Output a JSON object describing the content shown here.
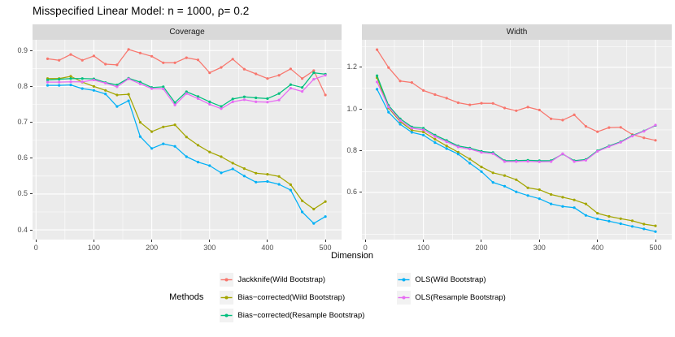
{
  "chart_data": {
    "type": "line",
    "title": "Misspecified Linear Model: n = 1000, ρ= 0.2",
    "xlabel": "Dimension",
    "legend_position": "bottom",
    "grid": true,
    "panel_bg": "#ebebeb",
    "strip_bg": "#d9d9d9",
    "x": [
      20,
      40,
      60,
      80,
      100,
      120,
      140,
      160,
      180,
      200,
      220,
      240,
      260,
      280,
      300,
      320,
      340,
      360,
      380,
      400,
      420,
      440,
      460,
      480,
      500
    ],
    "xlim": [
      -6,
      528
    ],
    "xticks": [
      0,
      100,
      200,
      300,
      400,
      500
    ],
    "xticks_minor": [
      50,
      150,
      250,
      350,
      450
    ],
    "legend": {
      "title": "Methods",
      "columns": [
        [
          {
            "label": "Jackknife(Wild Bootstrap)",
            "color": "#F8766D"
          },
          {
            "label": "Bias−corrected(Wild Bootstrap)",
            "color": "#A3A500"
          },
          {
            "label": "Bias−corrected(Resample Bootstrap)",
            "color": "#00BF7D"
          }
        ],
        [
          {
            "label": "OLS(Wild Bootstrap)",
            "color": "#00B0F6"
          },
          {
            "label": "OLS(Resample Bootstrap)",
            "color": "#E76BF3"
          }
        ]
      ]
    },
    "panels": [
      {
        "label": "Coverage",
        "ylim": [
          0.373,
          0.93
        ],
        "yticks": [
          0.4,
          0.5,
          0.6,
          0.7,
          0.8,
          0.9
        ],
        "yticks_minor": [
          0.45,
          0.55,
          0.65,
          0.75,
          0.85
        ],
        "series": [
          {
            "name": "Jackknife(Wild Bootstrap)",
            "color": "#F8766D",
            "values": [
              0.877,
              0.873,
              0.889,
              0.873,
              0.885,
              0.862,
              0.86,
              0.903,
              0.893,
              0.884,
              0.866,
              0.866,
              0.88,
              0.874,
              0.838,
              0.853,
              0.876,
              0.848,
              0.835,
              0.822,
              0.831,
              0.849,
              0.822,
              0.844,
              0.776
            ]
          },
          {
            "name": "Bias−corrected(Wild Bootstrap)",
            "color": "#A3A500",
            "values": [
              0.822,
              0.822,
              0.828,
              0.812,
              0.8,
              0.789,
              0.776,
              0.778,
              0.7,
              0.674,
              0.687,
              0.693,
              0.659,
              0.636,
              0.617,
              0.604,
              0.586,
              0.571,
              0.558,
              0.555,
              0.549,
              0.526,
              0.481,
              0.458,
              0.479
            ]
          },
          {
            "name": "Bias−corrected(Resample Bootstrap)",
            "color": "#00BF7D",
            "values": [
              0.818,
              0.82,
              0.822,
              0.822,
              0.821,
              0.811,
              0.804,
              0.823,
              0.812,
              0.797,
              0.799,
              0.755,
              0.785,
              0.772,
              0.757,
              0.744,
              0.765,
              0.771,
              0.768,
              0.766,
              0.78,
              0.805,
              0.797,
              0.838,
              0.834
            ]
          },
          {
            "name": "OLS(Wild Bootstrap)",
            "color": "#00B0F6",
            "values": [
              0.803,
              0.803,
              0.804,
              0.794,
              0.789,
              0.779,
              0.744,
              0.76,
              0.66,
              0.627,
              0.64,
              0.633,
              0.604,
              0.589,
              0.579,
              0.559,
              0.57,
              0.55,
              0.533,
              0.535,
              0.527,
              0.511,
              0.45,
              0.418,
              0.437
            ]
          },
          {
            "name": "OLS(Resample Bootstrap)",
            "color": "#E76BF3",
            "values": [
              0.812,
              0.812,
              0.813,
              0.813,
              0.818,
              0.809,
              0.799,
              0.821,
              0.807,
              0.794,
              0.793,
              0.748,
              0.78,
              0.766,
              0.75,
              0.738,
              0.757,
              0.763,
              0.757,
              0.756,
              0.762,
              0.795,
              0.786,
              0.82,
              0.831
            ]
          }
        ]
      },
      {
        "label": "Width",
        "ylim": [
          0.374,
          1.332
        ],
        "yticks": [
          0.6,
          0.8,
          1.0,
          1.2
        ],
        "yticks_minor": [
          0.4,
          0.5,
          0.7,
          0.9,
          1.1,
          1.3
        ],
        "series": [
          {
            "name": "Jackknife(Wild Bootstrap)",
            "color": "#F8766D",
            "values": [
              1.285,
              1.199,
              1.134,
              1.127,
              1.089,
              1.069,
              1.052,
              1.03,
              1.02,
              1.028,
              1.027,
              1.005,
              0.992,
              1.009,
              0.995,
              0.953,
              0.947,
              0.972,
              0.917,
              0.891,
              0.911,
              0.912,
              0.878,
              0.862,
              0.85
            ]
          },
          {
            "name": "Bias−corrected(Wild Bootstrap)",
            "color": "#A3A500",
            "values": [
              1.15,
              1.005,
              0.94,
              0.898,
              0.89,
              0.855,
              0.823,
              0.793,
              0.76,
              0.722,
              0.694,
              0.681,
              0.661,
              0.622,
              0.613,
              0.59,
              0.577,
              0.564,
              0.545,
              0.5,
              0.485,
              0.474,
              0.464,
              0.448,
              0.44
            ]
          },
          {
            "name": "Bias−corrected(Resample Bootstrap)",
            "color": "#00BF7D",
            "values": [
              1.16,
              1.017,
              0.953,
              0.914,
              0.908,
              0.875,
              0.849,
              0.823,
              0.813,
              0.797,
              0.791,
              0.752,
              0.753,
              0.754,
              0.752,
              0.753,
              0.784,
              0.752,
              0.758,
              0.8,
              0.823,
              0.843,
              0.873,
              0.895,
              0.921
            ]
          },
          {
            "name": "OLS(Wild Bootstrap)",
            "color": "#00B0F6",
            "values": [
              1.095,
              0.985,
              0.927,
              0.888,
              0.875,
              0.839,
              0.81,
              0.784,
              0.74,
              0.7,
              0.648,
              0.63,
              0.603,
              0.585,
              0.57,
              0.545,
              0.533,
              0.527,
              0.49,
              0.473,
              0.462,
              0.45,
              0.437,
              0.425,
              0.412
            ]
          },
          {
            "name": "OLS(Resample Bootstrap)",
            "color": "#E76BF3",
            "values": [
              1.13,
              1.01,
              0.945,
              0.908,
              0.9,
              0.868,
              0.843,
              0.818,
              0.808,
              0.792,
              0.786,
              0.748,
              0.748,
              0.749,
              0.747,
              0.748,
              0.786,
              0.748,
              0.754,
              0.797,
              0.82,
              0.84,
              0.87,
              0.893,
              0.923
            ]
          }
        ]
      }
    ]
  }
}
